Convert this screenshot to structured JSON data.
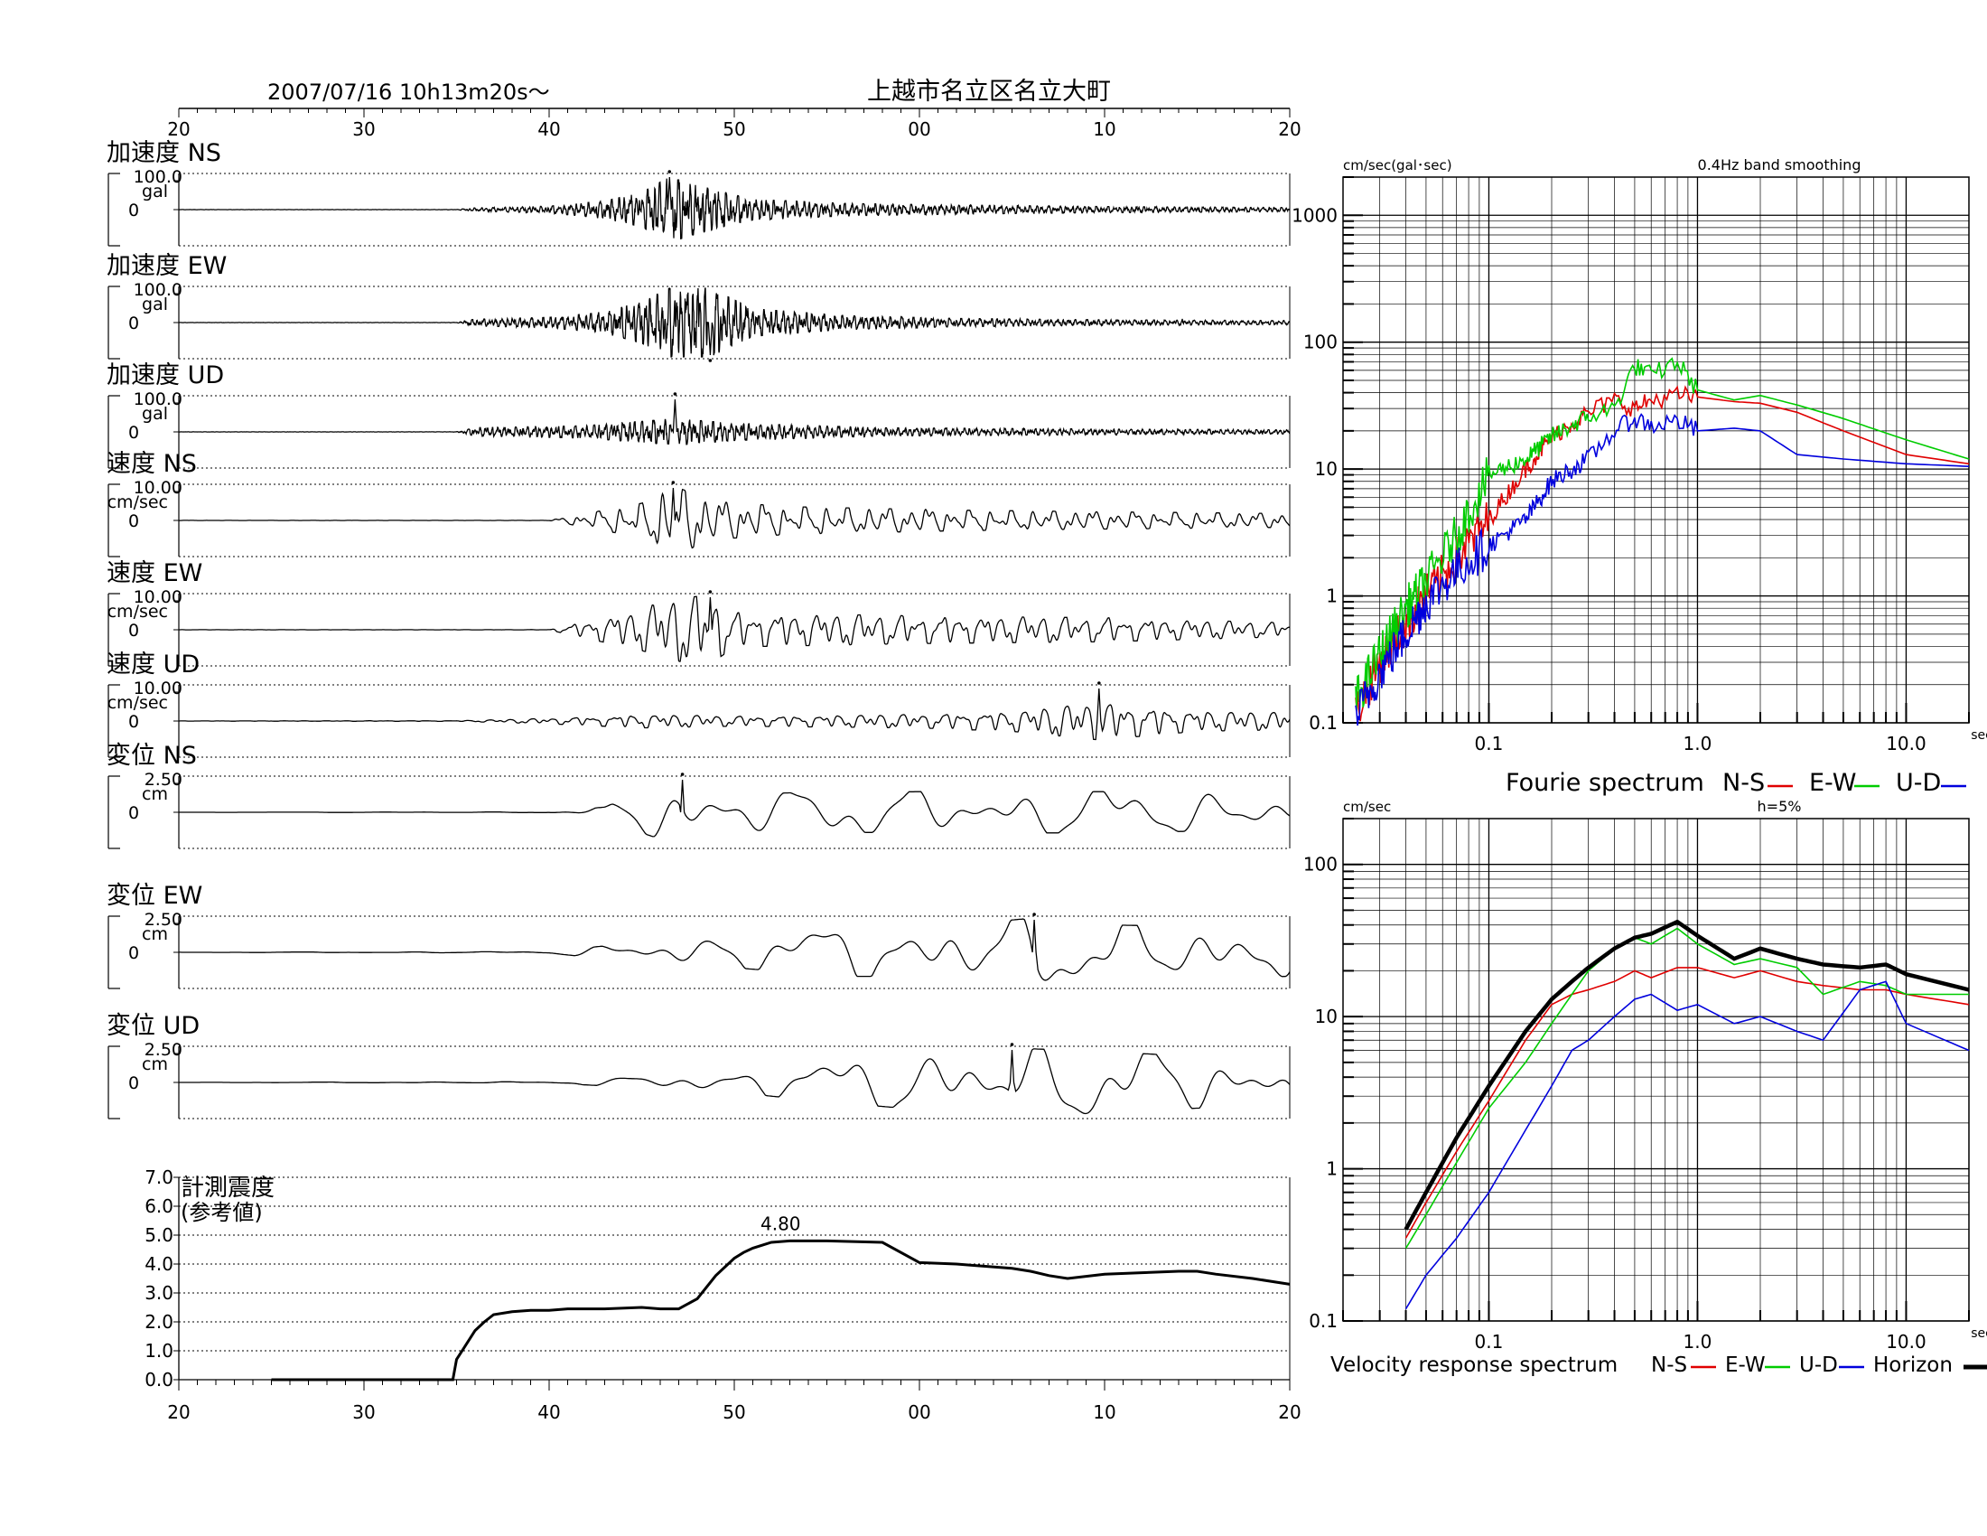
{
  "header": {
    "datetime": "2007/07/16  10h13m20s～",
    "station": "上越市名立区名立大町"
  },
  "time_ticks": [
    "20",
    "30",
    "40",
    "50",
    "00",
    "10",
    "20"
  ],
  "chart_data": [
    {
      "type": "line",
      "id": "waveforms",
      "x_range_s": [
        0,
        60
      ],
      "panels": [
        {
          "label": "加速度 NS",
          "scale_value": "100.0",
          "unit": "gal",
          "zero_label": "0",
          "peak_s": 26.5,
          "peak_dir": 1,
          "env": [
            [
              0,
              0.003
            ],
            [
              15,
              0.004
            ],
            [
              16,
              0.05
            ],
            [
              20,
              0.1
            ],
            [
              23,
              0.25
            ],
            [
              25,
              0.5
            ],
            [
              26.5,
              0.95
            ],
            [
              28,
              0.7
            ],
            [
              31,
              0.3
            ],
            [
              36,
              0.18
            ],
            [
              42,
              0.13
            ],
            [
              50,
              0.09
            ],
            [
              60,
              0.06
            ]
          ]
        },
        {
          "label": "加速度 EW",
          "scale_value": "100.0",
          "unit": "gal",
          "zero_label": "0",
          "peak_s": 28.7,
          "peak_dir": -1,
          "env": [
            [
              0,
              0.003
            ],
            [
              15,
              0.004
            ],
            [
              16,
              0.1
            ],
            [
              20,
              0.15
            ],
            [
              23,
              0.3
            ],
            [
              25,
              0.6
            ],
            [
              26.5,
              1.0
            ],
            [
              28.7,
              1.0
            ],
            [
              31,
              0.4
            ],
            [
              36,
              0.2
            ],
            [
              42,
              0.12
            ],
            [
              50,
              0.08
            ],
            [
              60,
              0.06
            ]
          ]
        },
        {
          "label": "加速度 UD",
          "scale_value": "100.0",
          "unit": "gal",
          "zero_label": "0",
          "peak_s": 26.8,
          "peak_dir": 1,
          "env": [
            [
              0,
              0.003
            ],
            [
              15,
              0.004
            ],
            [
              16,
              0.12
            ],
            [
              22,
              0.18
            ],
            [
              26,
              0.35
            ],
            [
              27,
              0.38
            ],
            [
              30,
              0.25
            ],
            [
              38,
              0.12
            ],
            [
              50,
              0.08
            ],
            [
              60,
              0.06
            ]
          ]
        },
        {
          "label": "速度 NS",
          "scale_value": "10.00",
          "unit": "cm/sec",
          "zero_label": "0",
          "peak_s": 26.7,
          "peak_dir": 1,
          "env": [
            [
              0,
              0.003
            ],
            [
              20,
              0.004
            ],
            [
              22,
              0.2
            ],
            [
              25,
              0.5
            ],
            [
              26.7,
              1.0
            ],
            [
              29,
              0.55
            ],
            [
              33,
              0.4
            ],
            [
              42,
              0.3
            ],
            [
              50,
              0.25
            ],
            [
              60,
              0.2
            ]
          ]
        },
        {
          "label": "速度 EW",
          "scale_value": "10.00",
          "unit": "cm/sec",
          "zero_label": "0",
          "peak_s": 28.7,
          "peak_dir": 1,
          "env": [
            [
              0,
              0.003
            ],
            [
              20,
              0.004
            ],
            [
              22,
              0.25
            ],
            [
              25,
              0.6
            ],
            [
              26.5,
              0.9
            ],
            [
              28.7,
              1.0
            ],
            [
              30,
              0.5
            ],
            [
              40,
              0.4
            ],
            [
              50,
              0.35
            ],
            [
              60,
              0.2
            ]
          ]
        },
        {
          "label": "速度 UD",
          "scale_value": "10.00",
          "unit": "cm/sec",
          "zero_label": "0",
          "peak_s": 49.7,
          "peak_dir": 1,
          "env": [
            [
              0,
              0.003
            ],
            [
              15,
              0.01
            ],
            [
              20,
              0.08
            ],
            [
              25,
              0.2
            ],
            [
              30,
              0.15
            ],
            [
              40,
              0.2
            ],
            [
              45,
              0.3
            ],
            [
              49.7,
              0.55
            ],
            [
              55,
              0.3
            ],
            [
              60,
              0.25
            ]
          ]
        },
        {
          "label": "変位 NS",
          "scale_value": "2.50",
          "unit": "cm",
          "zero_label": "0",
          "peak_s": 27.2,
          "peak_dir": 1,
          "env": [
            [
              0,
              0.002
            ],
            [
              20,
              0.01
            ],
            [
              23,
              0.15
            ],
            [
              25,
              0.6
            ],
            [
              27.2,
              1.0
            ],
            [
              30,
              0.55
            ],
            [
              40,
              0.6
            ],
            [
              50,
              0.6
            ],
            [
              60,
              0.5
            ]
          ]
        },
        {
          "label": "変位 EW",
          "scale_value": "2.50",
          "unit": "cm",
          "zero_label": "0",
          "peak_s": 46.2,
          "peak_dir": 1,
          "env": [
            [
              0,
              0.002
            ],
            [
              20,
              0.02
            ],
            [
              25,
              0.3
            ],
            [
              30,
              0.45
            ],
            [
              36,
              0.7
            ],
            [
              40,
              0.7
            ],
            [
              46.2,
              1.0
            ],
            [
              50,
              0.8
            ],
            [
              60,
              0.7
            ]
          ]
        },
        {
          "label": "変位 UD",
          "scale_value": "2.50",
          "unit": "cm",
          "zero_label": "0",
          "peak_s": 45.0,
          "peak_dir": 1,
          "env": [
            [
              0,
              0.002
            ],
            [
              20,
              0.02
            ],
            [
              25,
              0.15
            ],
            [
              30,
              0.3
            ],
            [
              38,
              0.7
            ],
            [
              45,
              1.0
            ],
            [
              50,
              0.9
            ],
            [
              60,
              0.6
            ]
          ]
        }
      ]
    },
    {
      "type": "line",
      "id": "seismic-intensity",
      "title": "計測震度",
      "subtitle": "(参考値)",
      "x_range_s": [
        0,
        60
      ],
      "ylim": [
        0,
        7
      ],
      "y_ticks": [
        "7.0",
        "6.0",
        "5.0",
        "4.0",
        "3.0",
        "2.0",
        "1.0",
        "0.0"
      ],
      "peak_label": "4.80",
      "x": [
        5,
        14.8,
        15,
        15.5,
        16,
        16.5,
        17,
        18,
        19,
        20,
        21,
        23,
        25,
        26,
        27,
        28,
        29,
        30,
        30.5,
        31,
        31.5,
        32,
        33,
        35,
        38,
        40,
        42,
        43,
        45,
        46,
        47,
        48,
        50,
        52,
        54,
        55,
        56,
        58,
        60
      ],
      "y": [
        0,
        0,
        0.7,
        1.2,
        1.7,
        2.0,
        2.25,
        2.35,
        2.4,
        2.4,
        2.45,
        2.45,
        2.5,
        2.45,
        2.45,
        2.8,
        3.6,
        4.2,
        4.4,
        4.55,
        4.65,
        4.75,
        4.8,
        4.8,
        4.75,
        4.05,
        4.0,
        3.95,
        3.85,
        3.75,
        3.6,
        3.5,
        3.65,
        3.7,
        3.75,
        3.75,
        3.65,
        3.5,
        3.3
      ]
    },
    {
      "type": "line",
      "id": "fourier-spectrum",
      "title": "Fourie spectrum",
      "note": "0.4Hz band smoothing",
      "ylabel": "cm/sec(gal･sec)",
      "xlabel": "sec",
      "xscale": "log",
      "yscale": "log",
      "xlim": [
        0.02,
        20
      ],
      "ylim": [
        0.1,
        2000
      ],
      "x_tick_labels": [
        "0.1",
        "1.0",
        "10.0"
      ],
      "y_tick_labels": [
        "1000",
        "100",
        "10",
        "1",
        "0.1"
      ],
      "series": [
        {
          "name": "N-S",
          "color": "#e00000",
          "x": [
            0.023,
            0.03,
            0.04,
            0.05,
            0.07,
            0.1,
            0.15,
            0.2,
            0.3,
            0.4,
            0.5,
            0.6,
            0.8,
            1.0,
            1.5,
            2.0,
            3.0,
            5.0,
            10.0,
            20.0
          ],
          "y": [
            0.12,
            0.3,
            0.6,
            1.0,
            2.0,
            4.0,
            10,
            18,
            28,
            35,
            30,
            35,
            38,
            37,
            34,
            33,
            28,
            20,
            13,
            11
          ]
        },
        {
          "name": "E-W",
          "color": "#00cc00",
          "x": [
            0.023,
            0.03,
            0.04,
            0.05,
            0.07,
            0.1,
            0.15,
            0.2,
            0.3,
            0.4,
            0.5,
            0.6,
            0.8,
            1.0,
            1.5,
            2.0,
            3.0,
            5.0,
            10.0,
            20.0
          ],
          "y": [
            0.15,
            0.35,
            0.8,
            1.3,
            3.0,
            9,
            12,
            18,
            26,
            30,
            65,
            55,
            70,
            42,
            35,
            38,
            32,
            25,
            17,
            12
          ]
        },
        {
          "name": "U-D",
          "color": "#0000dd",
          "x": [
            0.023,
            0.03,
            0.04,
            0.05,
            0.07,
            0.1,
            0.15,
            0.2,
            0.3,
            0.4,
            0.5,
            0.6,
            0.8,
            1.0,
            1.5,
            2.0,
            3.0,
            5.0,
            10.0,
            20.0
          ],
          "y": [
            0.11,
            0.25,
            0.5,
            0.9,
            1.6,
            2.5,
            4,
            8,
            12,
            20,
            25,
            22,
            24,
            20,
            21,
            20,
            13,
            12,
            11,
            10.5
          ]
        }
      ]
    },
    {
      "type": "line",
      "id": "velocity-response-spectrum",
      "title": "Velocity response spectrum",
      "note": "h=5%",
      "ylabel": "cm/sec",
      "xlabel": "sec",
      "xscale": "log",
      "yscale": "log",
      "xlim": [
        0.02,
        20
      ],
      "ylim": [
        0.1,
        200
      ],
      "x_tick_labels": [
        "0.1",
        "1.0",
        "10.0"
      ],
      "y_tick_labels": [
        "100",
        "10",
        "1",
        "0.1"
      ],
      "series": [
        {
          "name": "N-S",
          "color": "#e00000",
          "x": [
            0.04,
            0.05,
            0.07,
            0.1,
            0.15,
            0.2,
            0.25,
            0.3,
            0.4,
            0.5,
            0.6,
            0.8,
            1.0,
            1.5,
            2.0,
            3.0,
            4.0,
            6.0,
            8.0,
            10.0,
            20.0
          ],
          "y": [
            0.35,
            0.6,
            1.3,
            2.8,
            7,
            12,
            14,
            15,
            17,
            20,
            18,
            21,
            21,
            18,
            20,
            17,
            16,
            15,
            15,
            14,
            12
          ]
        },
        {
          "name": "E-W",
          "color": "#00cc00",
          "x": [
            0.04,
            0.05,
            0.07,
            0.1,
            0.15,
            0.2,
            0.25,
            0.3,
            0.4,
            0.5,
            0.6,
            0.8,
            1.0,
            1.5,
            2.0,
            3.0,
            4.0,
            6.0,
            8.0,
            10.0,
            20.0
          ],
          "y": [
            0.3,
            0.5,
            1.1,
            2.5,
            5,
            9,
            14,
            20,
            28,
            33,
            30,
            38,
            30,
            22,
            24,
            21,
            14,
            17,
            16,
            14,
            14
          ]
        },
        {
          "name": "U-D",
          "color": "#0000dd",
          "x": [
            0.04,
            0.05,
            0.07,
            0.1,
            0.15,
            0.2,
            0.25,
            0.3,
            0.4,
            0.5,
            0.6,
            0.8,
            1.0,
            1.5,
            2.0,
            3.0,
            4.0,
            6.0,
            8.0,
            10.0,
            20.0
          ],
          "y": [
            0.12,
            0.2,
            0.35,
            0.7,
            1.8,
            3.5,
            6,
            7,
            10,
            13,
            14,
            11,
            12,
            9,
            10,
            8,
            7,
            15,
            17,
            9,
            6
          ]
        },
        {
          "name": "Horizon",
          "color": "#000000",
          "bold": true,
          "x": [
            0.04,
            0.05,
            0.07,
            0.1,
            0.15,
            0.2,
            0.25,
            0.3,
            0.4,
            0.5,
            0.6,
            0.8,
            1.0,
            1.5,
            2.0,
            3.0,
            4.0,
            6.0,
            8.0,
            10.0,
            20.0
          ],
          "y": [
            0.4,
            0.7,
            1.6,
            3.5,
            8,
            13,
            17,
            21,
            28,
            33,
            35,
            42,
            34,
            24,
            28,
            24,
            22,
            21,
            22,
            19,
            15
          ]
        }
      ]
    }
  ]
}
